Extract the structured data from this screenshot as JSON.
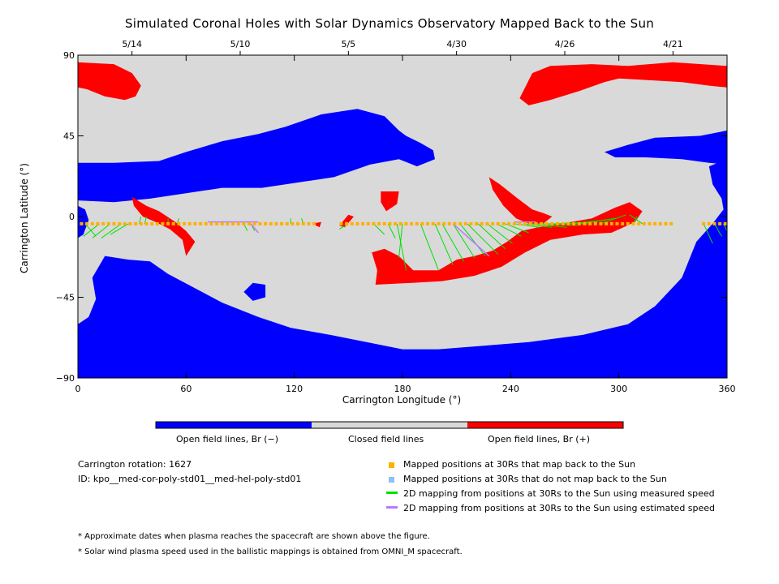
{
  "title": "Simulated Coronal Holes with Solar Dynamics Observatory Mapped Back to the Sun",
  "colors": {
    "open_negative": "#0000ff",
    "closed": "#d9d9d9",
    "open_positive": "#ff0000",
    "mapped_back": "#ffb000",
    "not_mapped": "#87c3ff",
    "measured_line": "#00e000",
    "estimated_line": "#b97aff"
  },
  "colorbar": {
    "neg_label": "Open field lines, Br (−)",
    "closed_label": "Closed field lines",
    "pos_label": "Open field lines, Br (+)"
  },
  "info": {
    "rotation": "Carrington rotation: 1627",
    "id": "ID: kpo__med-cor-poly-std01__med-hel-poly-std01"
  },
  "legend": {
    "mapped": "Mapped positions at 30Rs that map back to the Sun",
    "not_mapped": "Mapped positions at 30Rs that do not map back to the Sun",
    "measured": "2D mapping from positions at 30Rs to the Sun using measured speed",
    "estimated": "2D mapping from positions at 30Rs to the Sun using estimated speed"
  },
  "footnotes": [
    "* Approximate dates when plasma reaches the spacecraft are shown above the figure.",
    "* Solar wind plasma speed used in the ballistic mappings is obtained from OMNI_M spacecraft."
  ],
  "chart_data": {
    "type": "map",
    "xlabel": "Carrington Longitude (°)",
    "ylabel": "Carrington Latitude (°)",
    "xlim": [
      0,
      360
    ],
    "ylim": [
      -90,
      90
    ],
    "xticks": [
      0,
      60,
      120,
      180,
      240,
      300,
      360
    ],
    "yticks": [
      -90,
      -45,
      0,
      45,
      90
    ],
    "top_axis_dates": [
      {
        "label": "5/14",
        "lon": 30
      },
      {
        "label": "5/10",
        "lon": 90
      },
      {
        "label": "5/5",
        "lon": 150
      },
      {
        "label": "4/30",
        "lon": 210
      },
      {
        "label": "4/26",
        "lon": 270
      },
      {
        "label": "4/21",
        "lon": 330
      }
    ],
    "regions": {
      "negative": [
        [
          [
            0,
            30
          ],
          [
            20,
            30
          ],
          [
            45,
            31
          ],
          [
            60,
            36
          ],
          [
            80,
            42
          ],
          [
            100,
            46
          ],
          [
            115,
            50
          ],
          [
            135,
            57
          ],
          [
            155,
            60
          ],
          [
            170,
            56
          ],
          [
            178,
            48
          ],
          [
            182,
            45
          ],
          [
            190,
            41
          ],
          [
            197,
            37
          ],
          [
            198,
            32
          ],
          [
            188,
            28
          ],
          [
            178,
            32
          ],
          [
            162,
            29
          ],
          [
            142,
            22
          ],
          [
            122,
            19
          ],
          [
            102,
            16
          ],
          [
            80,
            16
          ],
          [
            60,
            13
          ],
          [
            40,
            10
          ],
          [
            20,
            8
          ],
          [
            0,
            9
          ]
        ],
        [
          [
            360,
            48
          ],
          [
            345,
            45
          ],
          [
            320,
            44
          ],
          [
            305,
            40
          ],
          [
            292,
            36
          ],
          [
            298,
            33
          ],
          [
            315,
            33
          ],
          [
            335,
            32
          ],
          [
            350,
            30
          ],
          [
            360,
            29
          ]
        ],
        [
          [
            360,
            32
          ],
          [
            350,
            28
          ],
          [
            352,
            18
          ],
          [
            357,
            10
          ],
          [
            358,
            4
          ],
          [
            352,
            -4
          ],
          [
            343,
            -14
          ],
          [
            335,
            -34
          ],
          [
            320,
            -50
          ],
          [
            305,
            -60
          ],
          [
            280,
            -66
          ],
          [
            250,
            -70
          ],
          [
            225,
            -72
          ],
          [
            200,
            -74
          ],
          [
            180,
            -74
          ],
          [
            160,
            -70
          ],
          [
            140,
            -66
          ],
          [
            118,
            -62
          ],
          [
            100,
            -56
          ],
          [
            80,
            -48
          ],
          [
            65,
            -40
          ],
          [
            50,
            -32
          ],
          [
            40,
            -25
          ],
          [
            28,
            -24
          ],
          [
            15,
            -22
          ],
          [
            8,
            -34
          ],
          [
            10,
            -46
          ],
          [
            6,
            -56
          ],
          [
            0,
            -60
          ],
          [
            0,
            -90
          ],
          [
            360,
            -90
          ]
        ],
        [
          [
            0,
            6
          ],
          [
            4,
            4
          ],
          [
            6,
            -2
          ],
          [
            3,
            -10
          ],
          [
            0,
            -12
          ]
        ],
        [
          [
            92,
            -42
          ],
          [
            97,
            -37
          ],
          [
            104,
            -38
          ],
          [
            104,
            -45
          ],
          [
            97,
            -47
          ]
        ],
        [
          [
            342,
            -33
          ],
          [
            348,
            -28
          ],
          [
            355,
            -34
          ],
          [
            356,
            -42
          ],
          [
            350,
            -46
          ],
          [
            344,
            -42
          ]
        ]
      ],
      "positive": [
        [
          [
            0,
            86
          ],
          [
            20,
            85
          ],
          [
            30,
            80
          ],
          [
            35,
            73
          ],
          [
            32,
            67
          ],
          [
            26,
            65
          ],
          [
            15,
            67
          ],
          [
            5,
            71
          ],
          [
            0,
            72
          ]
        ],
        [
          [
            245,
            66
          ],
          [
            252,
            80
          ],
          [
            262,
            84
          ],
          [
            285,
            85
          ],
          [
            305,
            84
          ],
          [
            330,
            86
          ],
          [
            360,
            84
          ],
          [
            360,
            72
          ],
          [
            350,
            73
          ],
          [
            335,
            75
          ],
          [
            318,
            76
          ],
          [
            300,
            77
          ],
          [
            292,
            75
          ],
          [
            278,
            70
          ],
          [
            262,
            65
          ],
          [
            250,
            62
          ]
        ],
        [
          [
            30,
            11
          ],
          [
            38,
            6
          ],
          [
            45,
            3
          ],
          [
            54,
            -3
          ],
          [
            60,
            -8
          ],
          [
            65,
            -14
          ],
          [
            60,
            -22
          ],
          [
            58,
            -13
          ],
          [
            51,
            -7
          ],
          [
            43,
            -3
          ],
          [
            36,
            0
          ],
          [
            31,
            6
          ]
        ],
        [
          [
            168,
            14
          ],
          [
            178,
            14
          ],
          [
            177,
            7
          ],
          [
            171,
            3
          ],
          [
            168,
            8
          ]
        ],
        [
          [
            145,
            -5
          ],
          [
            150,
            1
          ],
          [
            153,
            0
          ],
          [
            148,
            -6
          ]
        ],
        [
          [
            130,
            -4
          ],
          [
            135,
            -3
          ],
          [
            134,
            -6
          ]
        ],
        [
          [
            163,
            -20
          ],
          [
            170,
            -18
          ],
          [
            178,
            -22
          ],
          [
            186,
            -30
          ],
          [
            200,
            -30
          ],
          [
            210,
            -24
          ],
          [
            220,
            -22
          ],
          [
            230,
            -19
          ],
          [
            238,
            -14
          ],
          [
            246,
            -8
          ],
          [
            255,
            -6
          ],
          [
            268,
            -4
          ],
          [
            285,
            -1
          ],
          [
            298,
            5
          ],
          [
            306,
            8
          ],
          [
            313,
            3
          ],
          [
            309,
            -3
          ],
          [
            296,
            -9
          ],
          [
            280,
            -10
          ],
          [
            262,
            -13
          ],
          [
            248,
            -20
          ],
          [
            235,
            -28
          ],
          [
            220,
            -33
          ],
          [
            202,
            -36
          ],
          [
            185,
            -37
          ],
          [
            165,
            -38
          ],
          [
            166,
            -30
          ]
        ],
        [
          [
            228,
            22
          ],
          [
            234,
            18
          ],
          [
            244,
            10
          ],
          [
            252,
            4
          ],
          [
            258,
            2
          ],
          [
            263,
            0
          ],
          [
            258,
            -4
          ],
          [
            250,
            -4
          ],
          [
            243,
            -1
          ],
          [
            236,
            6
          ],
          [
            230,
            15
          ]
        ]
      ]
    },
    "mapped_points_lat": -4,
    "mapped_points_lon": [
      2,
      5,
      8,
      11,
      14,
      17,
      20,
      23,
      26,
      29,
      32,
      35,
      38,
      41,
      44,
      47,
      50,
      53,
      56,
      59,
      62,
      65,
      68,
      71,
      74,
      77,
      80,
      83,
      86,
      89,
      92,
      95,
      98,
      101,
      104,
      107,
      110,
      113,
      116,
      119,
      122,
      125,
      128,
      131,
      146,
      149,
      152,
      155,
      158,
      161,
      164,
      167,
      170,
      173,
      176,
      179,
      182,
      185,
      188,
      191,
      194,
      197,
      200,
      203,
      206,
      209,
      212,
      215,
      218,
      221,
      224,
      227,
      230,
      233,
      236,
      239,
      242,
      245,
      248,
      251,
      254,
      257,
      260,
      263,
      266,
      269,
      272,
      275,
      278,
      281,
      284,
      287,
      290,
      293,
      296,
      299,
      302,
      305,
      308,
      311,
      314,
      317,
      320,
      323,
      326,
      329,
      347,
      350,
      353,
      356,
      359
    ],
    "measured_lines": [
      [
        [
          4,
          -4
        ],
        [
          10,
          -11
        ]
      ],
      [
        [
          12,
          -4
        ],
        [
          3,
          -11
        ]
      ],
      [
        [
          18,
          -4
        ],
        [
          8,
          -12
        ]
      ],
      [
        [
          24,
          -4
        ],
        [
          13,
          -12
        ]
      ],
      [
        [
          28,
          -4
        ],
        [
          18,
          -10
        ]
      ],
      [
        [
          34,
          -4
        ],
        [
          35,
          0
        ]
      ],
      [
        [
          37,
          -4
        ],
        [
          38,
          0
        ]
      ],
      [
        [
          50,
          -4
        ],
        [
          50,
          -1
        ]
      ],
      [
        [
          55,
          -4
        ],
        [
          56,
          -1
        ]
      ],
      [
        [
          92,
          -4
        ],
        [
          94,
          -8
        ]
      ],
      [
        [
          96,
          -4
        ],
        [
          98,
          -8
        ]
      ],
      [
        [
          118,
          -4
        ],
        [
          118,
          -1
        ]
      ],
      [
        [
          125,
          -4
        ],
        [
          124,
          -1
        ]
      ],
      [
        [
          150,
          -4
        ],
        [
          145,
          -7
        ]
      ],
      [
        [
          164,
          -4
        ],
        [
          170,
          -10
        ]
      ],
      [
        [
          172,
          -4
        ],
        [
          176,
          -12
        ]
      ],
      [
        [
          177,
          -4
        ],
        [
          182,
          -30
        ]
      ],
      [
        [
          180,
          -4
        ],
        [
          178,
          -23
        ]
      ],
      [
        [
          190,
          -4
        ],
        [
          200,
          -30
        ]
      ],
      [
        [
          198,
          -4
        ],
        [
          208,
          -27
        ]
      ],
      [
        [
          202,
          -4
        ],
        [
          214,
          -25
        ]
      ],
      [
        [
          208,
          -4
        ],
        [
          220,
          -23
        ]
      ],
      [
        [
          212,
          -4
        ],
        [
          226,
          -22
        ]
      ],
      [
        [
          216,
          -4
        ],
        [
          233,
          -21
        ]
      ],
      [
        [
          222,
          -4
        ],
        [
          237,
          -18
        ]
      ],
      [
        [
          227,
          -4
        ],
        [
          241,
          -15
        ]
      ],
      [
        [
          232,
          -4
        ],
        [
          246,
          -11
        ]
      ],
      [
        [
          237,
          -4
        ],
        [
          250,
          -9
        ]
      ],
      [
        [
          242,
          -4
        ],
        [
          256,
          -6
        ]
      ],
      [
        [
          247,
          -4
        ],
        [
          263,
          -6
        ]
      ],
      [
        [
          252,
          -4
        ],
        [
          271,
          -6
        ]
      ],
      [
        [
          257,
          -4
        ],
        [
          277,
          -5
        ]
      ],
      [
        [
          261,
          -4
        ],
        [
          283,
          -4
        ]
      ],
      [
        [
          266,
          -4
        ],
        [
          288,
          -3
        ]
      ],
      [
        [
          272,
          -4
        ],
        [
          293,
          -2
        ]
      ],
      [
        [
          278,
          -4
        ],
        [
          298,
          -1
        ]
      ],
      [
        [
          290,
          -4
        ],
        [
          304,
          1
        ]
      ],
      [
        [
          308,
          -4
        ],
        [
          310,
          0
        ]
      ],
      [
        [
          313,
          -4
        ],
        [
          306,
          1
        ]
      ],
      [
        [
          347,
          -4
        ],
        [
          352,
          -15
        ]
      ],
      [
        [
          353,
          -4
        ],
        [
          357,
          -11
        ]
      ],
      [
        [
          358,
          -4
        ],
        [
          360,
          -8
        ]
      ]
    ],
    "estimated_lines": [
      [
        [
          72,
          -3
        ],
        [
          100,
          -3
        ]
      ],
      [
        [
          96,
          -4
        ],
        [
          100,
          -9
        ]
      ],
      [
        [
          208,
          -4
        ],
        [
          228,
          -22
        ]
      ],
      [
        [
          242,
          -3
        ],
        [
          254,
          -3
        ]
      ]
    ]
  }
}
